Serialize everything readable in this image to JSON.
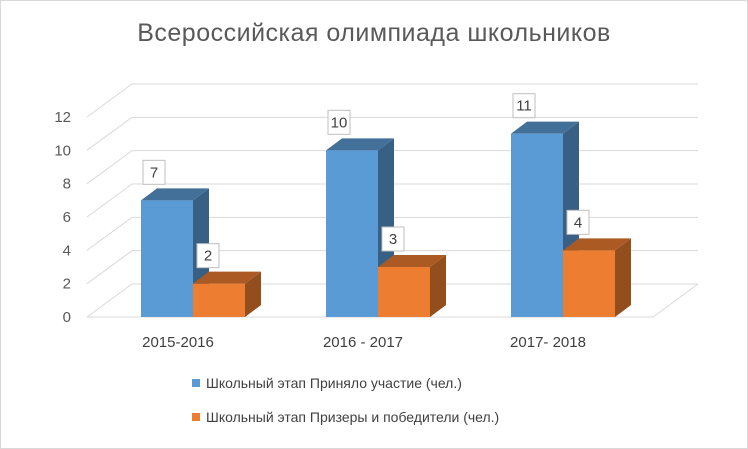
{
  "chart_data": {
    "type": "bar",
    "title": "Всероссийская олимпиада школьников",
    "categories": [
      "2015-2016",
      "2016 - 2017",
      "2017- 2018"
    ],
    "series": [
      {
        "name": "Школьный этап Приняло участие (чел.)",
        "values": [
          7,
          10,
          11
        ],
        "color": "#5b9bd5"
      },
      {
        "name": "Школьный этап Призеры и победители (чел.)",
        "values": [
          2,
          3,
          4
        ],
        "color": "#ed7d31"
      }
    ],
    "ylim": [
      0,
      12
    ],
    "yticks": [
      0,
      2,
      4,
      6,
      8,
      10,
      12
    ],
    "grid": true,
    "legend": "bottom",
    "style": "3d-clustered-column"
  }
}
